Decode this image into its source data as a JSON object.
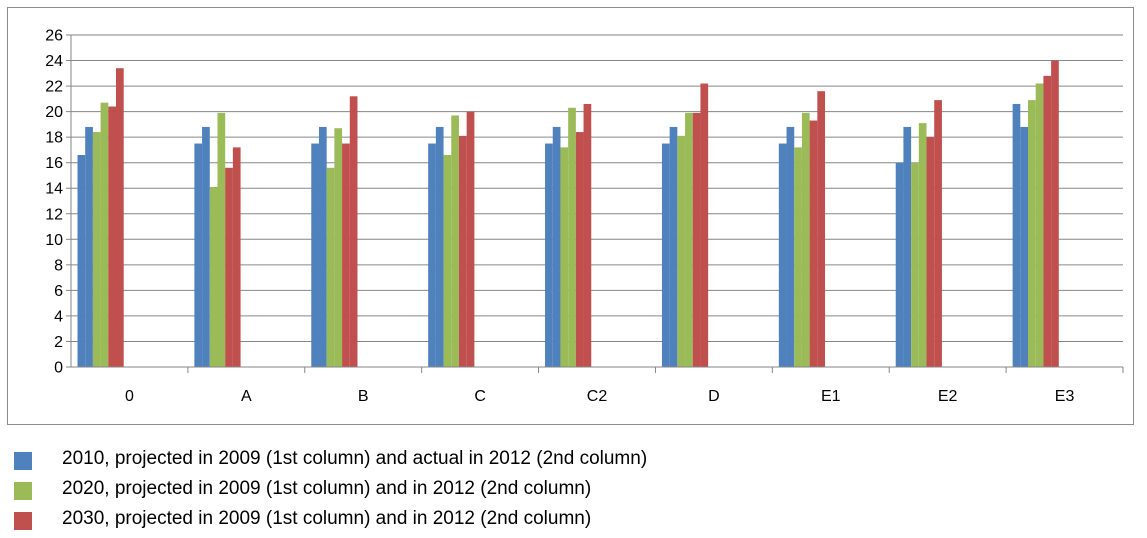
{
  "chart_data": {
    "type": "bar",
    "categories": [
      "0",
      "A",
      "B",
      "C",
      "C2",
      "D",
      "E1",
      "E2",
      "E3"
    ],
    "ylim": [
      0,
      26
    ],
    "ytick_step": 2,
    "grid": true,
    "legend_position": "bottom",
    "series": [
      {
        "name": "2010, projected in 2009 (1st column) and actual in 2012 (2nd column)",
        "color": "#4f81bd",
        "values": [
          [
            16.6,
            18.8
          ],
          [
            17.5,
            18.8
          ],
          [
            17.5,
            18.8
          ],
          [
            17.5,
            18.8
          ],
          [
            17.5,
            18.8
          ],
          [
            17.5,
            18.8
          ],
          [
            17.5,
            18.8
          ],
          [
            16.0,
            18.8
          ],
          [
            20.6,
            18.8
          ]
        ]
      },
      {
        "name": "2020, projected in 2009 (1st column) and in 2012 (2nd column)",
        "color": "#9bbb59",
        "values": [
          [
            18.4,
            20.7
          ],
          [
            14.1,
            19.9
          ],
          [
            15.6,
            18.7
          ],
          [
            16.6,
            19.7
          ],
          [
            17.2,
            20.3
          ],
          [
            18.1,
            19.9
          ],
          [
            17.2,
            19.9
          ],
          [
            16.0,
            19.1
          ],
          [
            20.9,
            22.2
          ]
        ]
      },
      {
        "name": "2030, projected in 2009 (1st column) and in 2012 (2nd column)",
        "color": "#c0504d",
        "values": [
          [
            20.4,
            23.4
          ],
          [
            15.6,
            17.2
          ],
          [
            17.5,
            21.2
          ],
          [
            18.1,
            20.0
          ],
          [
            18.4,
            20.6
          ],
          [
            19.9,
            22.2
          ],
          [
            19.3,
            21.6
          ],
          [
            18.0,
            20.9
          ],
          [
            22.8,
            24.0
          ]
        ]
      }
    ]
  }
}
